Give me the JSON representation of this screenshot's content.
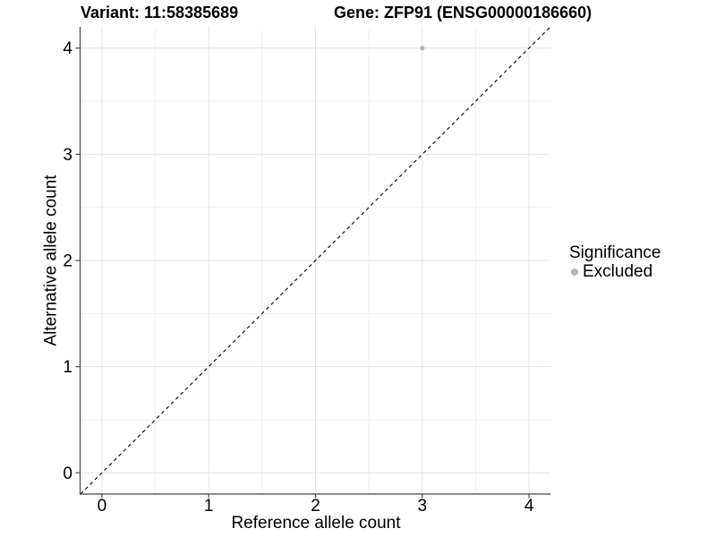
{
  "titles": {
    "variant": "Variant: 11:58385689",
    "gene": "Gene: ZFP91 (ENSG00000186660)"
  },
  "chart_data": {
    "type": "scatter",
    "title_left": "Variant: 11:58385689",
    "title_right": "Gene: ZFP91 (ENSG00000186660)",
    "xlabel": "Reference allele count",
    "ylabel": "Alternative allele count",
    "xlim": [
      -0.2,
      4.2
    ],
    "ylim": [
      -0.2,
      4.2
    ],
    "xticks": [
      0,
      1,
      2,
      3,
      4
    ],
    "yticks": [
      0,
      1,
      2,
      3,
      4
    ],
    "x_minor": [
      0.5,
      1.5,
      2.5,
      3.5
    ],
    "y_minor": [
      0.5,
      1.5,
      2.5,
      3.5
    ],
    "grid": true,
    "points": [
      {
        "x": 3,
        "y": 4,
        "series": "Excluded"
      }
    ],
    "identity_line": {
      "style": "dashed",
      "from": -0.2,
      "to": 4.2
    },
    "legend": {
      "position": "right",
      "title": "Significance",
      "items": [
        {
          "label": "Excluded",
          "color": "#b4b4b4"
        }
      ]
    },
    "colors": {
      "point": "#b4b4b4",
      "grid_major": "#e4e4e4",
      "grid_minor": "#f1f1f1",
      "axis": "#474747",
      "identity_line": "#000000",
      "text": "#000000"
    }
  }
}
